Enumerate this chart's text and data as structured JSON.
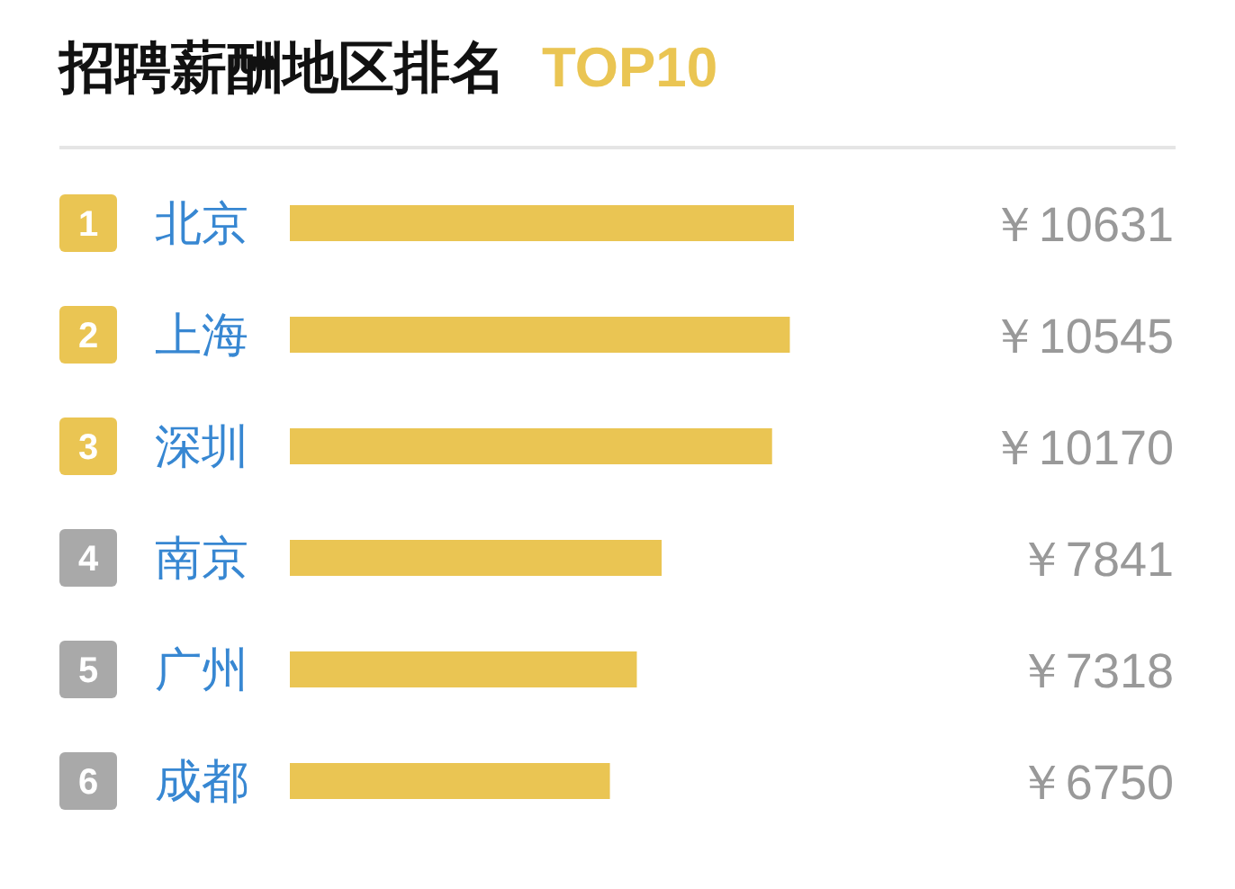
{
  "chart_data": {
    "type": "bar",
    "orientation": "horizontal",
    "title": "招聘薪酬地区排名",
    "subtitle": "TOP10",
    "categories": [
      "北京",
      "上海",
      "深圳",
      "南京",
      "广州",
      "成都"
    ],
    "values": [
      10631,
      10545,
      10170,
      7841,
      7318,
      6750
    ],
    "value_labels": [
      "￥10631",
      "￥10545",
      "￥10170",
      "￥7841",
      "￥7318",
      "￥6750"
    ],
    "color": "#eac553",
    "annotations": [
      "1",
      "2",
      "3",
      "4",
      "5",
      "6"
    ]
  }
}
